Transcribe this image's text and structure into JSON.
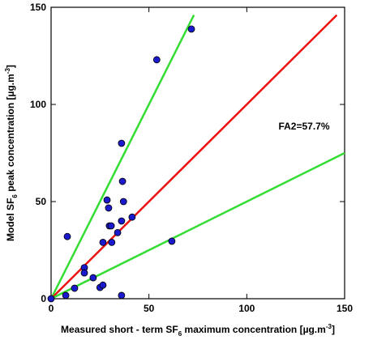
{
  "chart_data": {
    "type": "scatter",
    "xlabel_parts": [
      "Measured short - term SF",
      "6",
      " maximum concentration [µg.m",
      "-3",
      "]"
    ],
    "ylabel_parts": [
      "Model SF",
      "6",
      " peak concentration [µg.m",
      "-3",
      "]"
    ],
    "annotation": "FA2=57.7%",
    "x": [
      0,
      7.5,
      8.3,
      12,
      17,
      17,
      21.5,
      25,
      26.5,
      26.5,
      28.6,
      29.4,
      29.8,
      30.7,
      31,
      34,
      36,
      36,
      36,
      36.5,
      37,
      41.4,
      54,
      61.7,
      71.7
    ],
    "values": [
      0,
      1.7,
      32,
      5.4,
      16,
      13.3,
      10.8,
      5.8,
      7,
      29,
      50.8,
      46.7,
      37.5,
      37.5,
      29,
      34,
      40,
      1.7,
      80,
      60.4,
      50,
      42,
      123,
      29.6,
      138.8
    ],
    "marker_color": "#1a1acc",
    "lines": [
      {
        "color": "#33dd33",
        "x": [
          0,
          73
        ],
        "values": [
          0,
          146
        ]
      },
      {
        "color": "#ee1111",
        "x": [
          0,
          146
        ],
        "values": [
          0,
          146
        ]
      },
      {
        "color": "#33dd33",
        "x": [
          0,
          150
        ],
        "values": [
          0,
          75
        ]
      }
    ],
    "xlim": [
      0,
      150
    ],
    "ylim": [
      0,
      150
    ],
    "xticks": [
      0,
      50,
      100,
      150
    ],
    "yticks": [
      0,
      50,
      100,
      150
    ]
  }
}
